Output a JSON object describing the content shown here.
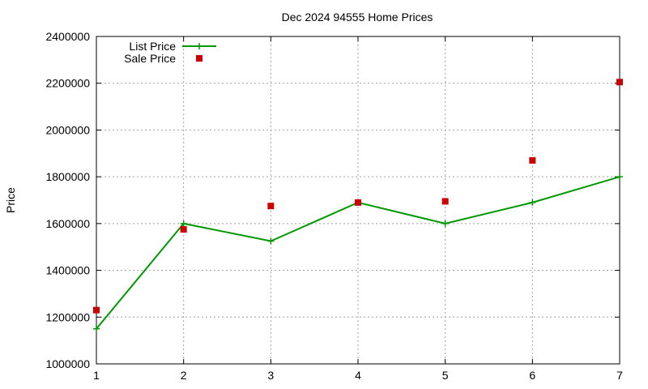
{
  "chart_data": {
    "type": "line",
    "title": "Dec 2024 94555 Home Prices",
    "xlabel": "",
    "ylabel": "Price",
    "x": [
      1,
      2,
      3,
      4,
      5,
      6,
      7
    ],
    "xlim": [
      1,
      7
    ],
    "ylim": [
      1000000,
      2400000
    ],
    "xticks": [
      "1",
      "2",
      "3",
      "4",
      "5",
      "6",
      "7"
    ],
    "yticks": [
      "1000000",
      "1200000",
      "1400000",
      "1600000",
      "1800000",
      "2000000",
      "2200000",
      "2400000"
    ],
    "grid": true,
    "legend_position": "top-left",
    "series": [
      {
        "name": "List Price",
        "style": "line-with-plus-markers",
        "color": "#009900",
        "values": [
          1150000,
          1600000,
          1525000,
          1690000,
          1600000,
          1690000,
          1800000
        ]
      },
      {
        "name": "Sale Price",
        "style": "square-markers",
        "color": "#cc0000",
        "values": [
          1230000,
          1575000,
          1675000,
          1690000,
          1695000,
          1870000,
          2205000
        ]
      }
    ]
  }
}
